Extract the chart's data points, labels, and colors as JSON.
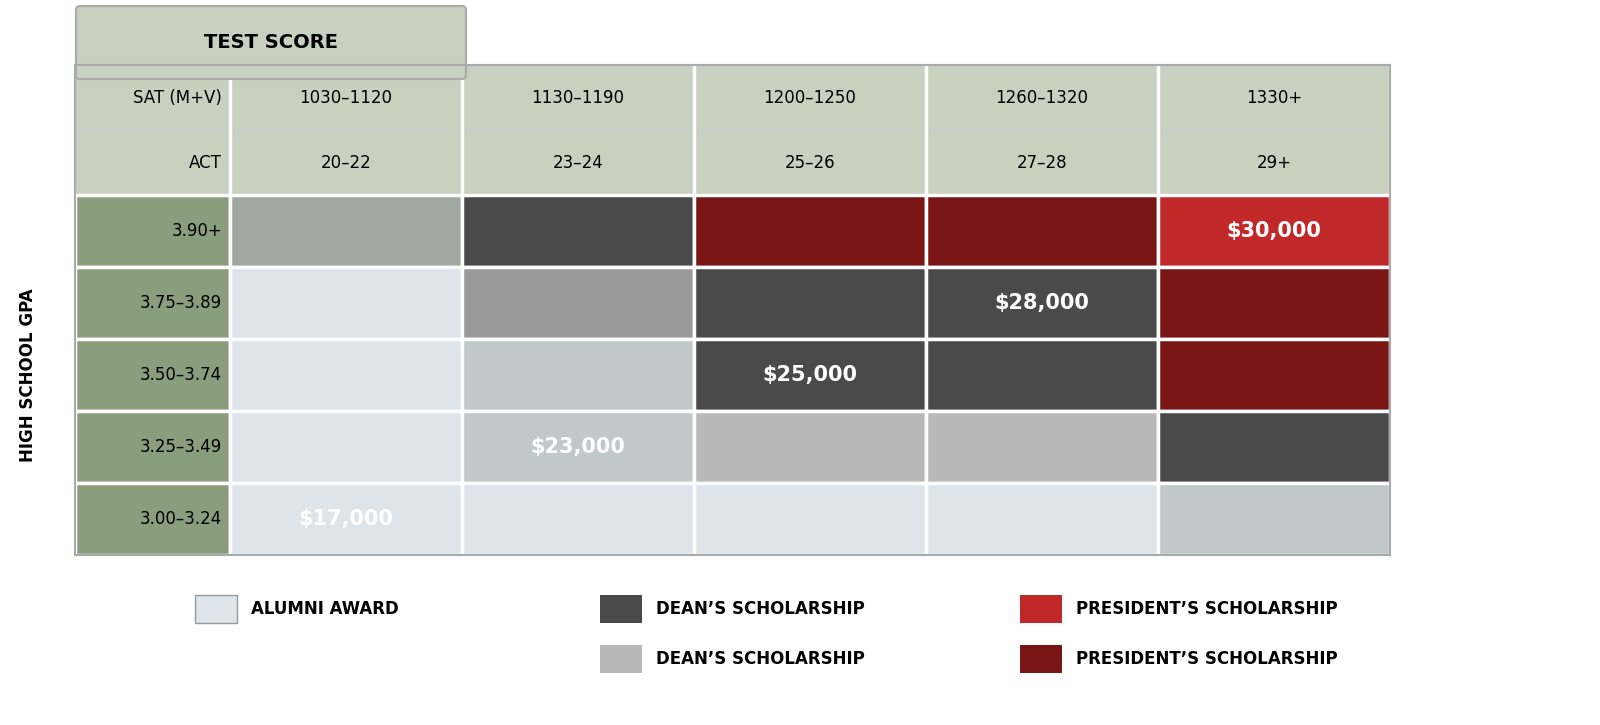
{
  "sat_labels": [
    "SAT (M+V)",
    "1030–1120",
    "1130–1190",
    "1200–1250",
    "1260–1320",
    "1330+"
  ],
  "act_labels": [
    "ACT",
    "20–22",
    "23–24",
    "25–26",
    "27–28",
    "29+"
  ],
  "gpa_labels": [
    "3.90+",
    "3.75–3.89",
    "3.50–3.74",
    "3.25–3.49",
    "3.00–3.24"
  ],
  "test_score_label": "TEST SCORE",
  "hs_gpa_label": "HIGH SCHOOL GPA",
  "cell_colors": [
    [
      "#a0a8a0",
      "#4a4a4a",
      "#7a1515",
      "#7a1515",
      "#c0282a"
    ],
    [
      "#dde5ea",
      "#9a9a9a",
      "#4a4a4a",
      "#4a4a4a",
      "#7a1515"
    ],
    [
      "#dde5ea",
      "#c0c8c8",
      "#4a4a4a",
      "#4a4a4a",
      "#7a1515"
    ],
    [
      "#dde5ea",
      "#c0c8c8",
      "#b8b8b8",
      "#b8b8b8",
      "#4a4a4a"
    ],
    [
      "#dde5ea",
      "#dde5ea",
      "#dde5ea",
      "#dde5ea",
      "#c0c8c8"
    ]
  ],
  "cell_labels": [
    [
      "",
      "",
      "",
      "",
      "$30,000"
    ],
    [
      "",
      "",
      "",
      "$28,000",
      ""
    ],
    [
      "",
      "",
      "$25,000",
      "",
      ""
    ],
    [
      "",
      "$23,000",
      "",
      "",
      ""
    ],
    [
      "$17,000",
      "",
      "",
      "",
      ""
    ]
  ],
  "legend_items": [
    {
      "color": "#dde5ea",
      "label": "ALUMNI AWARD",
      "border": "#aaaaaa"
    },
    {
      "color": "#4a4a4a",
      "label": "DEAN’S SCHOLARSHIP",
      "border": "none"
    },
    {
      "color": "#c0282a",
      "label": "PRESIDENT’S SCHOLARSHIP",
      "border": "none"
    },
    {
      "color": "#b8b8b8",
      "label": "DEAN’S SCHOLARSHIP",
      "border": "none"
    },
    {
      "color": "#7a1515",
      "label": "PRESIDENT’S SCHOLARSHIP",
      "border": "none"
    }
  ],
  "bg_color": "#ffffff",
  "header_bg": "#c8d0c0",
  "gpa_col_bg": "#8a9e7e",
  "border_color": "#ffffff"
}
